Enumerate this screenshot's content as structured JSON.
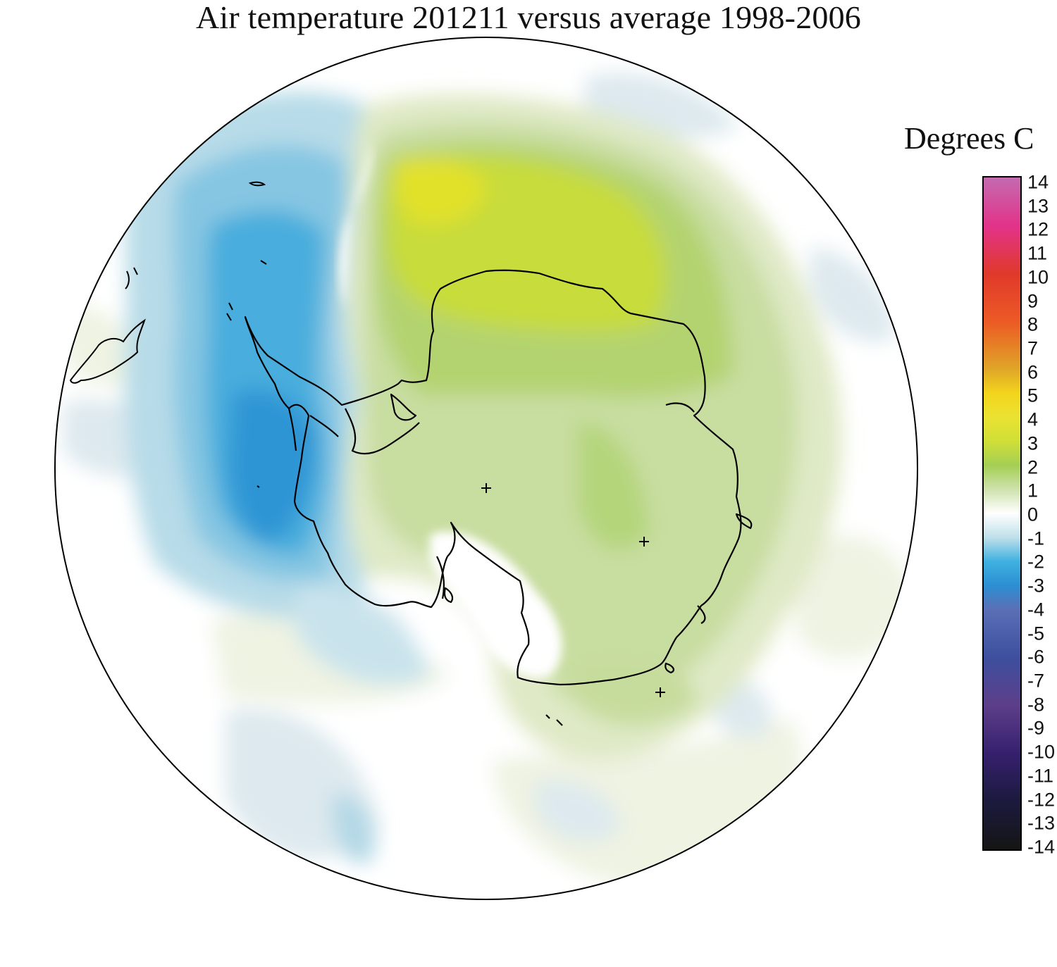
{
  "title": "Air temperature 201211 versus average 1998-2006",
  "legend": {
    "unit_label": "Degrees C",
    "ticks": [
      "14",
      "13",
      "12",
      "11",
      "10",
      "9",
      "8",
      "7",
      "6",
      "5",
      "4",
      "3",
      "2",
      "1",
      "0",
      "-1",
      "-2",
      "-3",
      "-4",
      "-5",
      "-6",
      "-7",
      "-8",
      "-9",
      "-10",
      "-11",
      "-12",
      "-13",
      "-14"
    ],
    "range": [
      -14,
      14
    ],
    "colors": {
      "14": "#c46bb0",
      "12": "#e2338a",
      "10": "#e0392b",
      "8": "#ec5a25",
      "6": "#e0a628",
      "5": "#f3d51c",
      "4": "#eae232",
      "3": "#cfdf36",
      "2": "#a4cf55",
      "1": "#cfe2ad",
      "0": "#ffffff",
      "-1": "#bfe0ea",
      "-2": "#3fb1e0",
      "-3": "#2c8fd3",
      "-4": "#5b6fb6",
      "-6": "#3d4f9e",
      "-8": "#5d3e8a",
      "-10": "#36206e",
      "-12": "#1b1a3d",
      "-14": "#151515"
    }
  },
  "map": {
    "projection": "south polar stereographic",
    "region": "Antarctica and Southern Ocean",
    "features": [
      "antarctic-coastline",
      "south-america-tip",
      "grid-cross-markers"
    ],
    "anomaly_regions": [
      {
        "name": "Bellingshausen/Amundsen sector",
        "value_c": -2.5,
        "color": "#40a6dc"
      },
      {
        "name": "Weddell Sea / Dronning Maud sector",
        "value_c": 3.5,
        "color": "#d8e02e"
      },
      {
        "name": "East Antarctica",
        "value_c": 1.5,
        "color": "#b5d575"
      },
      {
        "name": "Ross Ice Shelf",
        "value_c": 0,
        "color": "#ffffff"
      }
    ]
  }
}
